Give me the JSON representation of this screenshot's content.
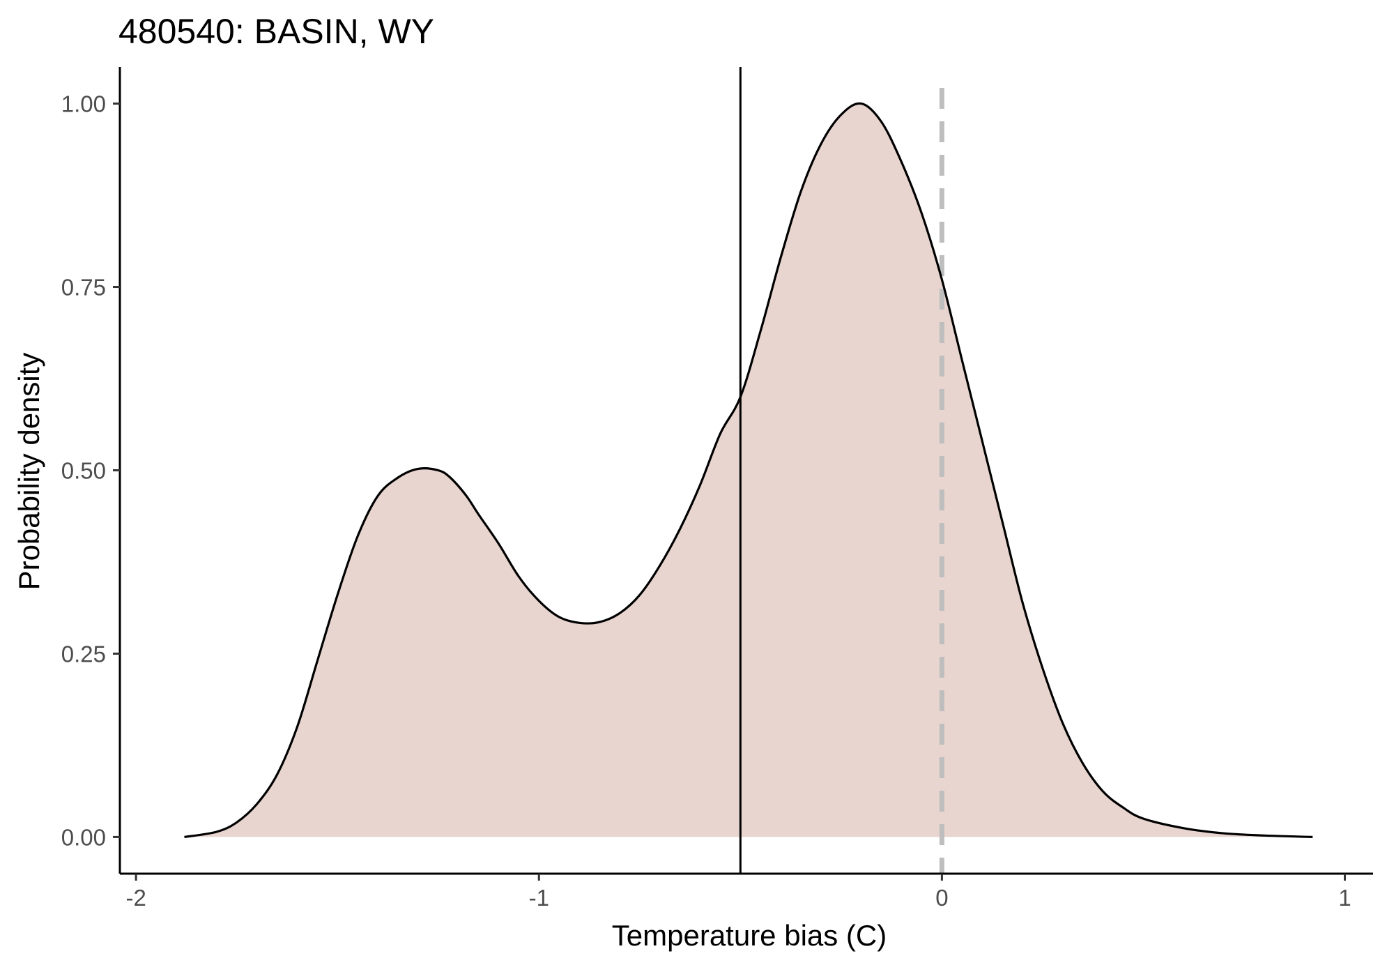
{
  "chart_data": {
    "type": "area",
    "title": "480540: BASIN, WY",
    "xlabel": "Temperature bias (C)",
    "ylabel": "Probability density",
    "xlim": [
      -2.04,
      1.07
    ],
    "ylim": [
      -0.05,
      1.05
    ],
    "x_ticks": [
      -2,
      -1,
      0,
      1
    ],
    "x_tick_labels": [
      "-2",
      "-1",
      "0",
      "1"
    ],
    "y_ticks": [
      0,
      0.25,
      0.5,
      0.75,
      1.0
    ],
    "y_tick_labels": [
      "0.00",
      "0.25",
      "0.50",
      "0.75",
      "1.00"
    ],
    "grid": false,
    "legend": "none",
    "colors": {
      "fill": "#e8d5cf",
      "line": "#000000",
      "reference": "#bebebe",
      "axis": "#000000"
    },
    "series": [
      {
        "x": [
          -1.88,
          -1.8,
          -1.75,
          -1.7,
          -1.65,
          -1.6,
          -1.55,
          -1.5,
          -1.45,
          -1.4,
          -1.35,
          -1.3,
          -1.25,
          -1.22,
          -1.18,
          -1.15,
          -1.1,
          -1.05,
          -1.0,
          -0.95,
          -0.9,
          -0.85,
          -0.8,
          -0.75,
          -0.7,
          -0.65,
          -0.6,
          -0.55,
          -0.5,
          -0.45,
          -0.4,
          -0.35,
          -0.3,
          -0.25,
          -0.2,
          -0.15,
          -0.1,
          -0.05,
          0.0,
          0.05,
          0.1,
          0.15,
          0.2,
          0.25,
          0.3,
          0.35,
          0.4,
          0.45,
          0.5,
          0.6,
          0.7,
          0.8,
          0.92
        ],
        "y": [
          0.0,
          0.007,
          0.02,
          0.045,
          0.085,
          0.15,
          0.24,
          0.33,
          0.41,
          0.465,
          0.49,
          0.502,
          0.5,
          0.49,
          0.465,
          0.44,
          0.4,
          0.355,
          0.322,
          0.3,
          0.292,
          0.293,
          0.305,
          0.33,
          0.37,
          0.42,
          0.48,
          0.55,
          0.6,
          0.69,
          0.79,
          0.88,
          0.945,
          0.985,
          1.0,
          0.975,
          0.92,
          0.85,
          0.76,
          0.65,
          0.54,
          0.43,
          0.32,
          0.23,
          0.155,
          0.1,
          0.062,
          0.04,
          0.025,
          0.012,
          0.005,
          0.002,
          0.0
        ]
      }
    ],
    "vertical_lines": [
      {
        "x": -0.5,
        "style": "solid"
      },
      {
        "x": 0.0,
        "style": "dashed"
      }
    ]
  }
}
